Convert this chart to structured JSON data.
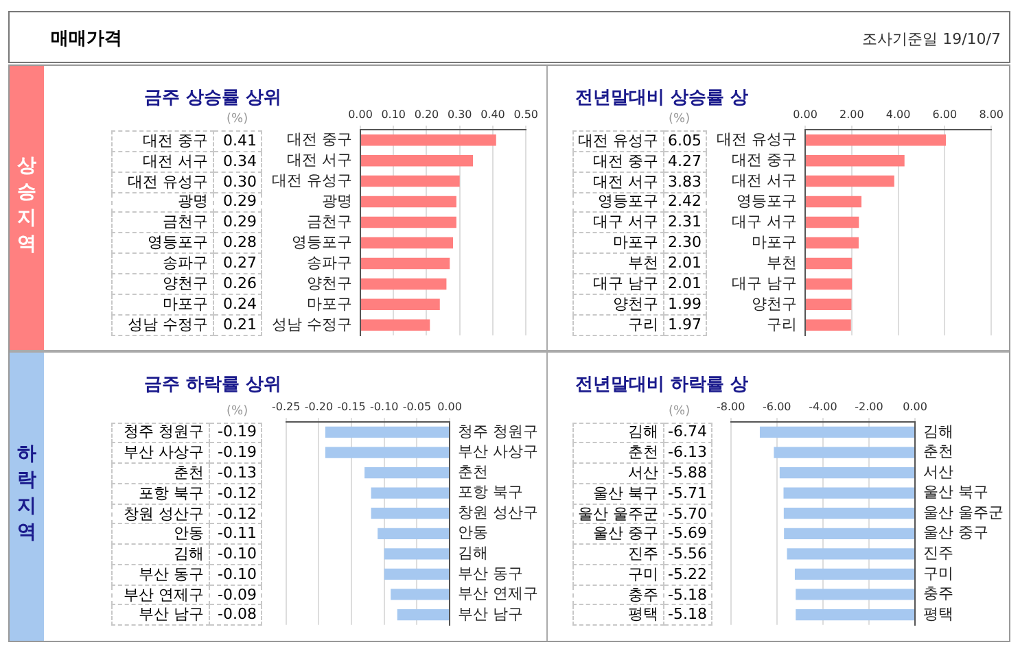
{
  "chart_data": [
    {
      "type": "other",
      "title": "매매가격",
      "annotations": [
        "조사기준일 19/10/7",
        "상승지역",
        "하락지역"
      ]
    },
    {
      "type": "bar",
      "orientation": "horizontal",
      "title": "금주 상승률 상위",
      "annotations": [
        "(%)"
      ],
      "grid": "x",
      "legend": false,
      "categories": [
        "대전 중구",
        "대전 서구",
        "대전 유성구",
        "광명",
        "금천구",
        "영등포구",
        "송파구",
        "양천구",
        "마포구",
        "성남 수정구"
      ],
      "values": [
        0.41,
        0.34,
        0.3,
        0.29,
        0.29,
        0.28,
        0.27,
        0.26,
        0.24,
        0.21
      ],
      "value_labels": [
        "0.41",
        "0.34",
        "0.30",
        "0.29",
        "0.29",
        "0.28",
        "0.27",
        "0.26",
        "0.24",
        "0.21"
      ],
      "color": "#ff7f7f",
      "xlim": [
        0,
        0.5
      ],
      "xticks": [
        {
          "value": 0,
          "label": "0.00"
        },
        {
          "value": 0.1,
          "label": "0.10"
        },
        {
          "value": 0.2,
          "label": "0.20"
        },
        {
          "value": 0.3,
          "label": "0.30"
        },
        {
          "value": 0.4,
          "label": "0.40"
        },
        {
          "value": 0.5,
          "label": "0.50"
        }
      ]
    },
    {
      "type": "bar",
      "orientation": "horizontal",
      "title": "전년말대비 상승률 상",
      "annotations": [
        "(%)"
      ],
      "grid": "x",
      "legend": false,
      "categories": [
        "대전 유성구",
        "대전 중구",
        "대전 서구",
        "영등포구",
        "대구 서구",
        "마포구",
        "부천",
        "대구 남구",
        "양천구",
        "구리"
      ],
      "values": [
        6.05,
        4.27,
        3.83,
        2.42,
        2.31,
        2.3,
        2.01,
        2.01,
        1.99,
        1.97
      ],
      "value_labels": [
        "6.05",
        "4.27",
        "3.83",
        "2.42",
        "2.31",
        "2.30",
        "2.01",
        "2.01",
        "1.99",
        "1.97"
      ],
      "color": "#ff7f7f",
      "xlim": [
        0,
        8
      ],
      "xticks": [
        {
          "value": 0,
          "label": "0.00"
        },
        {
          "value": 2,
          "label": "2.00"
        },
        {
          "value": 4,
          "label": "4.00"
        },
        {
          "value": 6,
          "label": "6.00"
        },
        {
          "value": 8,
          "label": "8.00"
        }
      ]
    },
    {
      "type": "bar",
      "orientation": "horizontal",
      "title": "금주 하락률 상위",
      "annotations": [
        "(%)"
      ],
      "grid": "x",
      "legend": false,
      "categories": [
        "청주 청원구",
        "부산 사상구",
        "춘천",
        "포항 북구",
        "창원 성산구",
        "안동",
        "김해",
        "부산 동구",
        "부산 연제구",
        "부산 남구"
      ],
      "values": [
        -0.19,
        -0.19,
        -0.13,
        -0.12,
        -0.12,
        -0.11,
        -0.1,
        -0.1,
        -0.09,
        -0.08
      ],
      "value_labels": [
        "-0.19",
        "-0.19",
        "-0.13",
        "-0.12",
        "-0.12",
        "-0.11",
        "-0.10",
        "-0.10",
        "-0.09",
        "-0.08"
      ],
      "color": "#a6c8f0",
      "xlim": [
        -0.25,
        0
      ],
      "xticks": [
        {
          "value": -0.25,
          "label": "-0.25"
        },
        {
          "value": -0.2,
          "label": "-0.20"
        },
        {
          "value": -0.15,
          "label": "-0.15"
        },
        {
          "value": -0.1,
          "label": "-0.10"
        },
        {
          "value": -0.05,
          "label": "-0.05"
        },
        {
          "value": 0,
          "label": "0.00"
        }
      ]
    },
    {
      "type": "bar",
      "orientation": "horizontal",
      "title": "전년말대비 하락률 상",
      "annotations": [
        "(%)"
      ],
      "grid": "x",
      "legend": false,
      "categories": [
        "김해",
        "춘천",
        "서산",
        "울산 북구",
        "울산 울주군",
        "울산 중구",
        "진주",
        "구미",
        "충주",
        "평택"
      ],
      "values": [
        -6.74,
        -6.13,
        -5.88,
        -5.71,
        -5.7,
        -5.69,
        -5.56,
        -5.22,
        -5.18,
        -5.18
      ],
      "value_labels": [
        "-6.74",
        "-6.13",
        "-5.88",
        "-5.71",
        "-5.70",
        "-5.69",
        "-5.56",
        "-5.22",
        "-5.18",
        "-5.18"
      ],
      "color": "#a6c8f0",
      "xlim": [
        -8,
        0
      ],
      "xticks": [
        {
          "value": -8,
          "label": "-8.00"
        },
        {
          "value": -6,
          "label": "-6.00"
        },
        {
          "value": -4,
          "label": "-4.00"
        },
        {
          "value": -2,
          "label": "-2.00"
        },
        {
          "value": 0,
          "label": "0.00"
        }
      ]
    }
  ]
}
